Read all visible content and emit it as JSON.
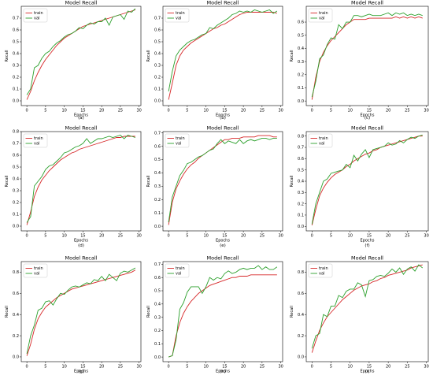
{
  "panel_labels": [
    "(a)",
    "(b)",
    "(c)",
    "(d)",
    "(e)",
    "(f)",
    "(g)",
    "(h)",
    "(i)"
  ],
  "colors": {
    "train": "#d62728",
    "val": "#2ca02c",
    "axis": "#000000"
  },
  "chart_data": [
    {
      "type": "line",
      "title": "Model Recall",
      "xlabel": "Epochs",
      "ylabel": "Recall",
      "xlim": [
        -1.5,
        30.5
      ],
      "ylim": [
        -0.04,
        0.8
      ],
      "xticks": [
        0,
        5,
        10,
        15,
        20,
        25,
        30
      ],
      "yticks": [
        0.0,
        0.1,
        0.2,
        0.3,
        0.4,
        0.5,
        0.6,
        0.7
      ],
      "legend": "upper-left",
      "x": [
        0,
        1,
        2,
        3,
        4,
        5,
        6,
        7,
        8,
        9,
        10,
        11,
        12,
        13,
        14,
        15,
        16,
        17,
        18,
        19,
        20,
        21,
        22,
        23,
        24,
        25,
        26,
        27,
        28,
        29
      ],
      "series": [
        {
          "name": "train",
          "color": "#d62728",
          "values": [
            0.01,
            0.08,
            0.17,
            0.24,
            0.3,
            0.35,
            0.39,
            0.43,
            0.47,
            0.5,
            0.53,
            0.55,
            0.57,
            0.59,
            0.61,
            0.63,
            0.64,
            0.65,
            0.66,
            0.67,
            0.68,
            0.69,
            0.7,
            0.71,
            0.72,
            0.73,
            0.74,
            0.75,
            0.76,
            0.77
          ]
        },
        {
          "name": "val",
          "color": "#2ca02c",
          "values": [
            0.05,
            0.1,
            0.28,
            0.3,
            0.36,
            0.4,
            0.42,
            0.46,
            0.49,
            0.51,
            0.54,
            0.56,
            0.57,
            0.59,
            0.62,
            0.61,
            0.64,
            0.66,
            0.65,
            0.67,
            0.67,
            0.7,
            0.64,
            0.71,
            0.72,
            0.73,
            0.69,
            0.76,
            0.75,
            0.78
          ]
        }
      ]
    },
    {
      "type": "line",
      "title": "Model Recall",
      "xlabel": "Epochs",
      "ylabel": "Recall",
      "xlim": [
        -1.5,
        30.5
      ],
      "ylim": [
        -0.04,
        0.8
      ],
      "xticks": [
        0,
        5,
        10,
        15,
        20,
        25,
        30
      ],
      "yticks": [
        0.0,
        0.1,
        0.2,
        0.3,
        0.4,
        0.5,
        0.6,
        0.7
      ],
      "legend": "upper-left",
      "x": [
        0,
        1,
        2,
        3,
        4,
        5,
        6,
        7,
        8,
        9,
        10,
        11,
        12,
        13,
        14,
        15,
        16,
        17,
        18,
        19,
        20,
        21,
        22,
        23,
        24,
        25,
        26,
        27,
        28,
        29
      ],
      "series": [
        {
          "name": "train",
          "color": "#d62728",
          "values": [
            0.01,
            0.15,
            0.3,
            0.38,
            0.43,
            0.46,
            0.49,
            0.51,
            0.53,
            0.55,
            0.57,
            0.59,
            0.61,
            0.62,
            0.64,
            0.65,
            0.67,
            0.69,
            0.71,
            0.73,
            0.74,
            0.75,
            0.75,
            0.75,
            0.75,
            0.75,
            0.75,
            0.75,
            0.75,
            0.74
          ]
        },
        {
          "name": "val",
          "color": "#2ca02c",
          "values": [
            0.08,
            0.25,
            0.38,
            0.43,
            0.46,
            0.49,
            0.51,
            0.52,
            0.54,
            0.56,
            0.57,
            0.62,
            0.61,
            0.64,
            0.66,
            0.68,
            0.7,
            0.73,
            0.74,
            0.76,
            0.75,
            0.76,
            0.75,
            0.77,
            0.76,
            0.75,
            0.76,
            0.77,
            0.74,
            0.76
          ]
        }
      ]
    },
    {
      "type": "line",
      "title": "Model Recall",
      "xlabel": "Epochs",
      "ylabel": "Recall",
      "xlim": [
        -1.5,
        30.5
      ],
      "ylim": [
        -0.035,
        0.72
      ],
      "xticks": [
        0,
        5,
        10,
        15,
        20,
        25,
        30
      ],
      "yticks": [
        0.0,
        0.1,
        0.2,
        0.3,
        0.4,
        0.5,
        0.6
      ],
      "legend": "upper-left",
      "x": [
        0,
        1,
        2,
        3,
        4,
        5,
        6,
        7,
        8,
        9,
        10,
        11,
        12,
        13,
        14,
        15,
        16,
        17,
        18,
        19,
        20,
        21,
        22,
        23,
        24,
        25,
        26,
        27,
        28,
        29
      ],
      "series": [
        {
          "name": "train",
          "color": "#d62728",
          "values": [
            0.01,
            0.18,
            0.3,
            0.37,
            0.42,
            0.46,
            0.49,
            0.52,
            0.55,
            0.58,
            0.6,
            0.62,
            0.62,
            0.62,
            0.62,
            0.63,
            0.63,
            0.63,
            0.63,
            0.63,
            0.63,
            0.63,
            0.64,
            0.63,
            0.64,
            0.63,
            0.64,
            0.63,
            0.64,
            0.63
          ]
        },
        {
          "name": "val",
          "color": "#2ca02c",
          "values": [
            0.03,
            0.15,
            0.32,
            0.35,
            0.43,
            0.48,
            0.47,
            0.58,
            0.55,
            0.6,
            0.6,
            0.65,
            0.65,
            0.64,
            0.65,
            0.66,
            0.65,
            0.65,
            0.65,
            0.66,
            0.67,
            0.65,
            0.67,
            0.66,
            0.67,
            0.65,
            0.66,
            0.65,
            0.66,
            0.65
          ]
        }
      ]
    },
    {
      "type": "line",
      "title": "Model Recall",
      "xlabel": "Epochs",
      "ylabel": "Recall",
      "xlim": [
        -1.5,
        30.5
      ],
      "ylim": [
        -0.04,
        0.8
      ],
      "xticks": [
        0,
        5,
        10,
        15,
        20,
        25,
        30
      ],
      "yticks": [
        0.0,
        0.1,
        0.2,
        0.3,
        0.4,
        0.5,
        0.6,
        0.7,
        0.8
      ],
      "legend": "upper-left",
      "x": [
        0,
        1,
        2,
        3,
        4,
        5,
        6,
        7,
        8,
        9,
        10,
        11,
        12,
        13,
        14,
        15,
        16,
        17,
        18,
        19,
        20,
        21,
        22,
        23,
        24,
        25,
        26,
        27,
        28,
        29
      ],
      "series": [
        {
          "name": "train",
          "color": "#d62728",
          "values": [
            0.01,
            0.12,
            0.25,
            0.33,
            0.39,
            0.43,
            0.47,
            0.5,
            0.53,
            0.56,
            0.58,
            0.6,
            0.62,
            0.63,
            0.65,
            0.66,
            0.67,
            0.68,
            0.69,
            0.7,
            0.71,
            0.72,
            0.73,
            0.74,
            0.75,
            0.75,
            0.76,
            0.76,
            0.76,
            0.76
          ]
        },
        {
          "name": "val",
          "color": "#2ca02c",
          "values": [
            0.03,
            0.08,
            0.34,
            0.38,
            0.42,
            0.48,
            0.51,
            0.52,
            0.55,
            0.58,
            0.62,
            0.63,
            0.65,
            0.67,
            0.68,
            0.7,
            0.74,
            0.7,
            0.72,
            0.74,
            0.74,
            0.75,
            0.76,
            0.75,
            0.76,
            0.77,
            0.74,
            0.77,
            0.76,
            0.75
          ]
        }
      ]
    },
    {
      "type": "line",
      "title": "Model Recall",
      "xlabel": "Epochs",
      "ylabel": "Recall",
      "xlim": [
        -1.5,
        30.5
      ],
      "ylim": [
        -0.035,
        0.71
      ],
      "xticks": [
        0,
        5,
        10,
        15,
        20,
        25,
        30
      ],
      "yticks": [
        0.0,
        0.1,
        0.2,
        0.3,
        0.4,
        0.5,
        0.6,
        0.7
      ],
      "legend": "upper-left",
      "x": [
        0,
        1,
        2,
        3,
        4,
        5,
        6,
        7,
        8,
        9,
        10,
        11,
        12,
        13,
        14,
        15,
        16,
        17,
        18,
        19,
        20,
        21,
        22,
        23,
        24,
        25,
        26,
        27,
        28,
        29
      ],
      "series": [
        {
          "name": "train",
          "color": "#d62728",
          "values": [
            0.01,
            0.18,
            0.28,
            0.34,
            0.39,
            0.43,
            0.46,
            0.48,
            0.51,
            0.53,
            0.55,
            0.57,
            0.59,
            0.61,
            0.63,
            0.65,
            0.65,
            0.66,
            0.66,
            0.66,
            0.67,
            0.67,
            0.67,
            0.67,
            0.68,
            0.68,
            0.68,
            0.68,
            0.67,
            0.67
          ]
        },
        {
          "name": "val",
          "color": "#2ca02c",
          "values": [
            0.03,
            0.22,
            0.3,
            0.38,
            0.42,
            0.47,
            0.48,
            0.5,
            0.52,
            0.53,
            0.55,
            0.57,
            0.58,
            0.62,
            0.65,
            0.62,
            0.64,
            0.63,
            0.62,
            0.65,
            0.62,
            0.64,
            0.65,
            0.64,
            0.65,
            0.66,
            0.66,
            0.65,
            0.66,
            0.66
          ]
        }
      ]
    },
    {
      "type": "line",
      "title": "Model Recall",
      "xlabel": "Epochs",
      "ylabel": "Recall",
      "xlim": [
        -1.5,
        30.5
      ],
      "ylim": [
        -0.04,
        0.84
      ],
      "xticks": [
        0,
        5,
        10,
        15,
        20,
        25,
        30
      ],
      "yticks": [
        0.0,
        0.1,
        0.2,
        0.3,
        0.4,
        0.5,
        0.6,
        0.7,
        0.8
      ],
      "legend": "upper-left",
      "x": [
        0,
        1,
        2,
        3,
        4,
        5,
        6,
        7,
        8,
        9,
        10,
        11,
        12,
        13,
        14,
        15,
        16,
        17,
        18,
        19,
        20,
        21,
        22,
        23,
        24,
        25,
        26,
        27,
        28,
        29
      ],
      "series": [
        {
          "name": "train",
          "color": "#d62728",
          "values": [
            0.01,
            0.15,
            0.27,
            0.34,
            0.39,
            0.43,
            0.46,
            0.48,
            0.5,
            0.53,
            0.55,
            0.58,
            0.6,
            0.62,
            0.64,
            0.65,
            0.67,
            0.68,
            0.7,
            0.71,
            0.72,
            0.73,
            0.74,
            0.75,
            0.76,
            0.77,
            0.78,
            0.79,
            0.8,
            0.8
          ]
        },
        {
          "name": "val",
          "color": "#2ca02c",
          "values": [
            0.02,
            0.2,
            0.3,
            0.4,
            0.42,
            0.47,
            0.48,
            0.49,
            0.5,
            0.55,
            0.52,
            0.63,
            0.58,
            0.64,
            0.68,
            0.61,
            0.68,
            0.69,
            0.7,
            0.71,
            0.74,
            0.72,
            0.73,
            0.76,
            0.74,
            0.77,
            0.79,
            0.78,
            0.8,
            0.81
          ]
        }
      ]
    },
    {
      "type": "line",
      "title": "Model Recall",
      "xlabel": "Epochs",
      "ylabel": "Recall",
      "xlim": [
        -1.5,
        30.5
      ],
      "ylim": [
        -0.045,
        0.9
      ],
      "xticks": [
        0,
        5,
        10,
        15,
        20,
        25,
        30
      ],
      "yticks": [
        0.0,
        0.2,
        0.4,
        0.6,
        0.8
      ],
      "legend": "upper-left",
      "x": [
        0,
        1,
        2,
        3,
        4,
        5,
        6,
        7,
        8,
        9,
        10,
        11,
        12,
        13,
        14,
        15,
        16,
        17,
        18,
        19,
        20,
        21,
        22,
        23,
        24,
        25,
        26,
        27,
        28,
        29
      ],
      "series": [
        {
          "name": "train",
          "color": "#d62728",
          "values": [
            0.01,
            0.12,
            0.26,
            0.36,
            0.42,
            0.47,
            0.5,
            0.53,
            0.56,
            0.58,
            0.6,
            0.62,
            0.64,
            0.65,
            0.66,
            0.67,
            0.68,
            0.69,
            0.7,
            0.71,
            0.72,
            0.73,
            0.74,
            0.75,
            0.76,
            0.77,
            0.78,
            0.79,
            0.8,
            0.82
          ]
        },
        {
          "name": "val",
          "color": "#2ca02c",
          "values": [
            0.03,
            0.2,
            0.3,
            0.44,
            0.46,
            0.52,
            0.53,
            0.49,
            0.55,
            0.6,
            0.59,
            0.63,
            0.66,
            0.67,
            0.66,
            0.68,
            0.7,
            0.69,
            0.73,
            0.72,
            0.76,
            0.72,
            0.78,
            0.75,
            0.72,
            0.79,
            0.81,
            0.8,
            0.82,
            0.84
          ]
        }
      ]
    },
    {
      "type": "line",
      "title": "Model Recall",
      "xlabel": "Epochs",
      "ylabel": "Recall",
      "xlim": [
        -1.5,
        30.5
      ],
      "ylim": [
        -0.035,
        0.72
      ],
      "xticks": [
        0,
        5,
        10,
        15,
        20,
        25,
        30
      ],
      "yticks": [
        0.0,
        0.1,
        0.2,
        0.3,
        0.4,
        0.5,
        0.6,
        0.7
      ],
      "legend": "upper-left",
      "x": [
        0,
        1,
        2,
        3,
        4,
        5,
        6,
        7,
        8,
        9,
        10,
        11,
        12,
        13,
        14,
        15,
        16,
        17,
        18,
        19,
        20,
        21,
        22,
        23,
        24,
        25,
        26,
        27,
        28,
        29
      ],
      "series": [
        {
          "name": "train",
          "color": "#d62728",
          "values": [
            0.0,
            0.01,
            0.16,
            0.26,
            0.33,
            0.38,
            0.42,
            0.45,
            0.48,
            0.5,
            0.52,
            0.54,
            0.55,
            0.56,
            0.57,
            0.58,
            0.59,
            0.6,
            0.6,
            0.61,
            0.61,
            0.61,
            0.62,
            0.62,
            0.62,
            0.62,
            0.62,
            0.62,
            0.62,
            0.62
          ]
        },
        {
          "name": "val",
          "color": "#2ca02c",
          "values": [
            0.0,
            0.01,
            0.13,
            0.36,
            0.41,
            0.49,
            0.53,
            0.53,
            0.53,
            0.48,
            0.53,
            0.6,
            0.58,
            0.6,
            0.59,
            0.63,
            0.65,
            0.63,
            0.64,
            0.66,
            0.67,
            0.66,
            0.67,
            0.67,
            0.69,
            0.66,
            0.68,
            0.66,
            0.66,
            0.68
          ]
        }
      ]
    },
    {
      "type": "line",
      "title": "Model Recall",
      "xlabel": "Epochs",
      "ylabel": "Recall",
      "xlim": [
        -1.5,
        30.5
      ],
      "ylim": [
        -0.045,
        0.9
      ],
      "xticks": [
        0,
        5,
        10,
        15,
        20,
        25,
        30
      ],
      "yticks": [
        0.0,
        0.2,
        0.4,
        0.6,
        0.8
      ],
      "legend": "upper-left",
      "x": [
        0,
        1,
        2,
        3,
        4,
        5,
        6,
        7,
        8,
        9,
        10,
        11,
        12,
        13,
        14,
        15,
        16,
        17,
        18,
        19,
        20,
        21,
        22,
        23,
        24,
        25,
        26,
        27,
        28,
        29
      ],
      "series": [
        {
          "name": "train",
          "color": "#d62728",
          "values": [
            0.04,
            0.15,
            0.25,
            0.32,
            0.38,
            0.42,
            0.46,
            0.5,
            0.54,
            0.57,
            0.6,
            0.63,
            0.65,
            0.67,
            0.68,
            0.69,
            0.71,
            0.72,
            0.74,
            0.75,
            0.77,
            0.78,
            0.79,
            0.8,
            0.81,
            0.82,
            0.84,
            0.85,
            0.86,
            0.87
          ]
        },
        {
          "name": "val",
          "color": "#2ca02c",
          "values": [
            0.08,
            0.2,
            0.22,
            0.4,
            0.38,
            0.48,
            0.48,
            0.58,
            0.56,
            0.62,
            0.64,
            0.64,
            0.7,
            0.68,
            0.57,
            0.72,
            0.73,
            0.76,
            0.77,
            0.76,
            0.79,
            0.83,
            0.8,
            0.84,
            0.78,
            0.83,
            0.85,
            0.81,
            0.87,
            0.84
          ]
        }
      ]
    }
  ]
}
